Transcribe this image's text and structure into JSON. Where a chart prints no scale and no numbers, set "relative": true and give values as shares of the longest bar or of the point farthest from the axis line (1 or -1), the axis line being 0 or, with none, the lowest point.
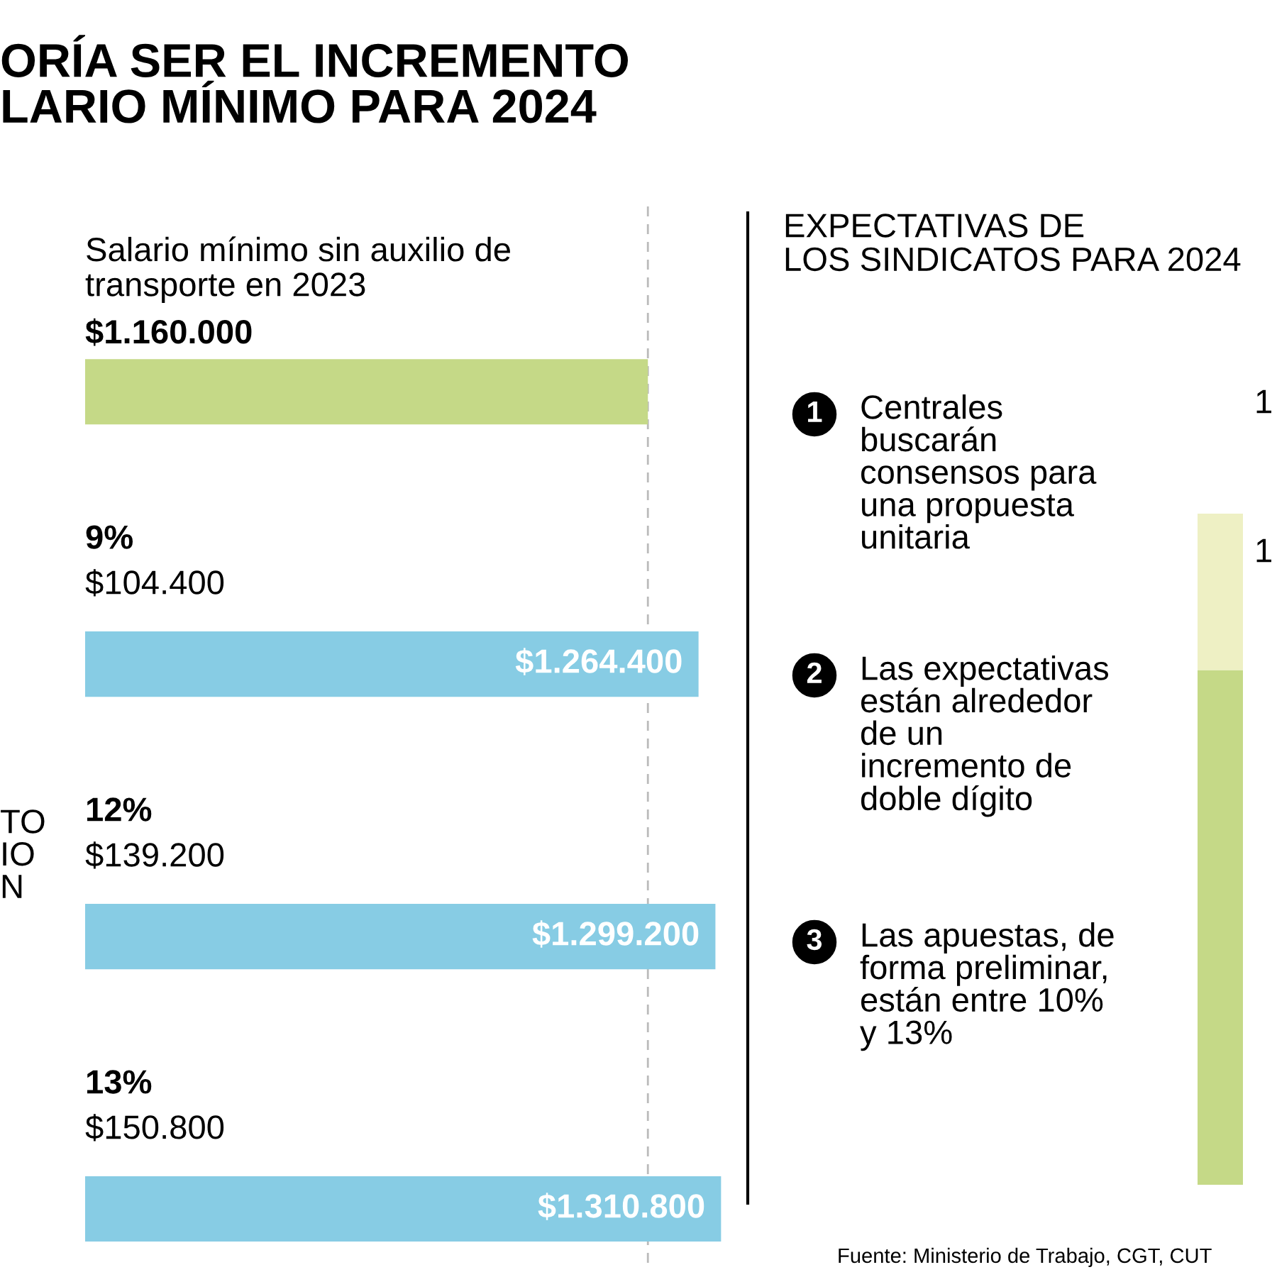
{
  "chart_data": [
    {
      "type": "bar",
      "orientation": "horizontal",
      "title": "ORÍA SER EL INCREMENTO\nLARIO MÍNIMO PARA 2024",
      "categories": [
        "Salario mínimo sin auxilio de\ntransporte en 2023",
        "9%",
        "12%",
        "13%"
      ],
      "values": [
        1160000,
        1264400,
        1299200,
        1310800
      ],
      "colors": [
        "#c5d987",
        "#87cce4",
        "#87cce4",
        "#87cce4"
      ],
      "value_labels": [
        "$1.160.000",
        "$1.264.400",
        "$1.299.200",
        "$1.310.800"
      ],
      "xlim": [
        0,
        1360000
      ],
      "ref_lines": [
        {
          "axis": "x",
          "value": 1160000,
          "label": null,
          "color": "#bbbbbb",
          "line_style": "dashed"
        }
      ],
      "annotations": [
        "$104.400",
        "$139.200",
        "$150.800",
        "TO\nIO\nN"
      ],
      "tick_labels": false,
      "grid": false
    },
    {
      "type": "other",
      "title": "EXPECTATIVAS DE\nLOS SINDICATOS PARA 2024",
      "annotations": [
        "1",
        "Centrales\nbuscarán\nconsensos para\nuna propuesta\nunitaria",
        "2",
        "Las expectativas\nestán alrededor\nde un\nincremento de\ndoble dígito",
        "3",
        "Las apuestas, de\nforma preliminar,\nestán entre 10%\ny 13%",
        "Fuente: Ministerio de Trabajo, CGT, CUT"
      ]
    },
    {
      "type": "bar",
      "stacked": true,
      "relative": true,
      "categories": [
        null
      ],
      "series": [
        {
          "color": "#c5d987",
          "values": [
            0.767
          ]
        },
        {
          "color": "#eef0c4",
          "values": [
            0.233
          ]
        }
      ],
      "annotations": [
        "1",
        "1"
      ],
      "tick_labels": false,
      "grid": false
    }
  ]
}
